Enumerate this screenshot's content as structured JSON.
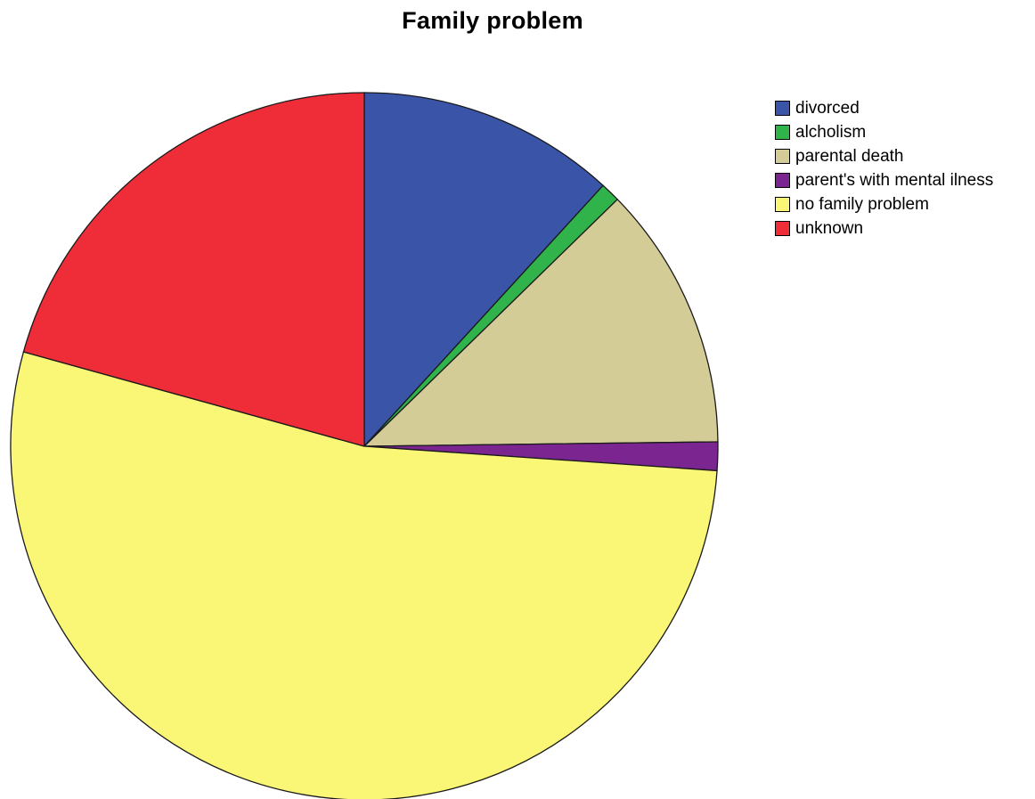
{
  "chart_data": {
    "type": "pie",
    "title": "Family problem",
    "legend_position": "right",
    "start_angle_deg": 0,
    "direction": "clockwise",
    "slices": [
      {
        "label": "divorced",
        "value": 11.8,
        "color": "#3a55a8"
      },
      {
        "label": "alcholism",
        "value": 0.9,
        "color": "#2fb34a"
      },
      {
        "label": "parental death",
        "value": 12.1,
        "color": "#d4cc97"
      },
      {
        "label": "parent's with mental ilness",
        "value": 1.3,
        "color": "#7a2590"
      },
      {
        "label": "no family problem",
        "value": 53.2,
        "color": "#fbf776"
      },
      {
        "label": "unknown",
        "value": 20.7,
        "color": "#ef2d39"
      }
    ]
  }
}
